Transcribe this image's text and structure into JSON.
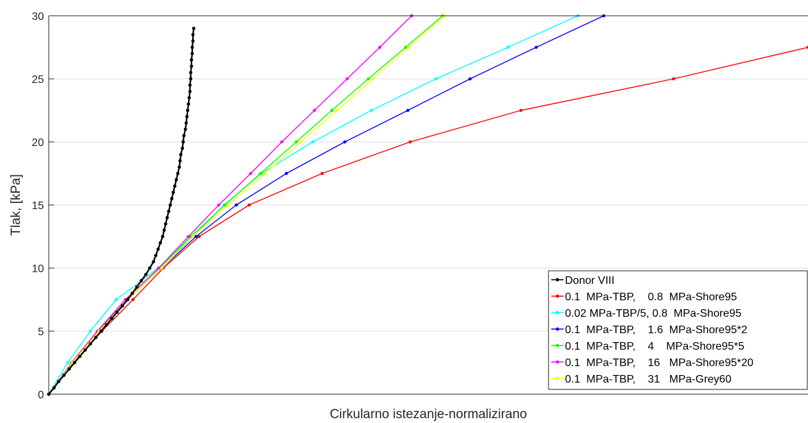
{
  "chart_data": {
    "type": "line",
    "title": "",
    "xlabel": "Cirkularno istezanje-normalizirano",
    "ylabel": "Tlak, [kPa]",
    "xlim": [
      0,
      1
    ],
    "ylim": [
      0,
      30
    ],
    "xtick_labels_shown": false,
    "yticks": [
      0,
      5,
      10,
      15,
      20,
      25,
      30
    ],
    "grid": "horizontal",
    "legend_position": "lower-right",
    "series": [
      {
        "name": "Donor VIII",
        "color": "#000000",
        "x": [
          0.0,
          0.007,
          0.013,
          0.02,
          0.027,
          0.034,
          0.041,
          0.048,
          0.055,
          0.062,
          0.069,
          0.076,
          0.083,
          0.09,
          0.097,
          0.104,
          0.11,
          0.116,
          0.122,
          0.128,
          0.133,
          0.138,
          0.141,
          0.144,
          0.147,
          0.15,
          0.152,
          0.154,
          0.156,
          0.158,
          0.16,
          0.162,
          0.164,
          0.166,
          0.168,
          0.17,
          0.172,
          0.173,
          0.174,
          0.176,
          0.177,
          0.178,
          0.18,
          0.181,
          0.182,
          0.183,
          0.184,
          0.185,
          0.186,
          0.186,
          0.187,
          0.187,
          0.188,
          0.188,
          0.189,
          0.189,
          0.19,
          0.19,
          0.191
        ],
        "y": [
          0.0,
          0.5,
          1.0,
          1.5,
          2.0,
          2.5,
          3.0,
          3.5,
          4.0,
          4.5,
          5.0,
          5.5,
          6.0,
          6.5,
          7.0,
          7.5,
          8.0,
          8.5,
          9.0,
          9.5,
          10.0,
          10.5,
          11.0,
          11.5,
          12.0,
          12.5,
          13.0,
          13.5,
          14.0,
          14.5,
          15.0,
          15.5,
          16.0,
          16.5,
          17.0,
          17.5,
          18.0,
          18.5,
          19.0,
          19.5,
          20.0,
          20.5,
          21.0,
          21.5,
          22.0,
          22.5,
          23.0,
          23.5,
          24.0,
          24.5,
          25.0,
          25.5,
          26.0,
          26.5,
          27.0,
          27.5,
          28.0,
          28.5,
          29.0
        ]
      },
      {
        "name": "0.1  MPa-TBP,    0.8  MPa-Shore95",
        "color": "#ff0000",
        "x": [
          0.0,
          0.033,
          0.07,
          0.111,
          0.151,
          0.198,
          0.264,
          0.36,
          0.476,
          0.622,
          0.823,
          1.0
        ],
        "y": [
          0.0,
          2.5,
          5.0,
          7.5,
          10.0,
          12.5,
          15.0,
          17.5,
          20.0,
          22.5,
          25.0,
          27.5
        ]
      },
      {
        "name": "0.02 MPa-TBP/5, 0.8  MPa-Shore95",
        "color": "#00ffff",
        "x": [
          0.0,
          0.025,
          0.055,
          0.089,
          0.144,
          0.19,
          0.231,
          0.28,
          0.348,
          0.425,
          0.51,
          0.605,
          0.697
        ],
        "y": [
          0.0,
          2.5,
          5.0,
          7.5,
          10.0,
          12.5,
          15.0,
          17.5,
          20.0,
          22.5,
          25.0,
          27.5,
          30.0
        ]
      },
      {
        "name": "0.1  MPa-TBP,    1.6  MPa-Shore95*2",
        "color": "#0000ff",
        "x": [
          0.0,
          0.031,
          0.065,
          0.104,
          0.149,
          0.194,
          0.247,
          0.313,
          0.39,
          0.473,
          0.555,
          0.642,
          0.731
        ],
        "y": [
          0.0,
          2.5,
          5.0,
          7.5,
          10.0,
          12.5,
          15.0,
          17.5,
          20.0,
          22.5,
          25.0,
          27.5,
          30.0
        ]
      },
      {
        "name": "0.1  MPa-TBP,    4    MPa-Shore95*5",
        "color": "#00ff00",
        "x": [
          0.0,
          0.03,
          0.064,
          0.101,
          0.146,
          0.187,
          0.232,
          0.279,
          0.326,
          0.373,
          0.421,
          0.47,
          0.519
        ],
        "y": [
          0.0,
          2.5,
          5.0,
          7.5,
          10.0,
          12.5,
          15.0,
          17.5,
          20.0,
          22.5,
          25.0,
          27.5,
          30.0
        ]
      },
      {
        "name": "0.1  MPa-TBP,    16   MPa-Shore95*20",
        "color": "#ff00ff",
        "x": [
          0.0,
          0.03,
          0.064,
          0.101,
          0.145,
          0.184,
          0.224,
          0.266,
          0.307,
          0.35,
          0.393,
          0.436,
          0.478
        ],
        "y": [
          0.0,
          2.5,
          5.0,
          7.5,
          10.0,
          12.5,
          15.0,
          17.5,
          20.0,
          22.5,
          25.0,
          27.5,
          30.0
        ]
      },
      {
        "name": "0.1  MPa-TBP,    31   MPa-Grey60",
        "color": "#ffff00",
        "x": [
          0.0,
          0.031,
          0.066,
          0.104,
          0.149,
          0.19,
          0.236,
          0.285,
          0.332,
          0.38,
          0.427,
          0.474,
          0.521
        ],
        "y": [
          0.0,
          2.5,
          5.0,
          7.5,
          10.0,
          12.5,
          15.0,
          17.5,
          20.0,
          22.5,
          25.0,
          27.5,
          30.0
        ]
      }
    ]
  }
}
